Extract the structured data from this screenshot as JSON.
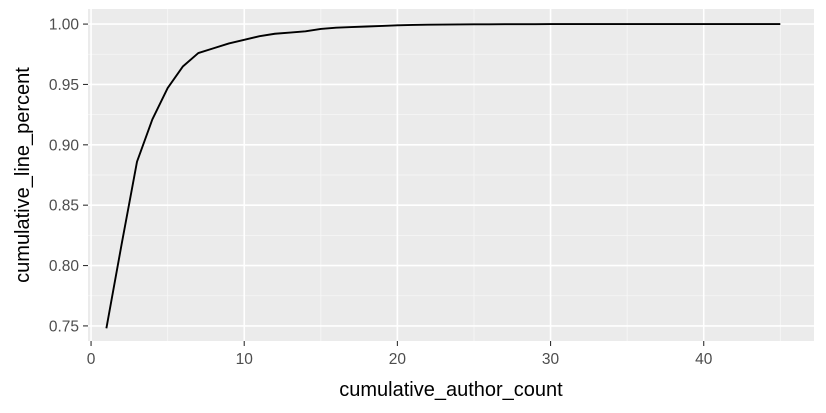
{
  "chart_data": {
    "type": "line",
    "title": "",
    "xlabel": "cumulative_author_count",
    "ylabel": "cumulative_line_percent",
    "xlim": [
      -0.2,
      47.2
    ],
    "ylim": [
      0.7375,
      1.0125
    ],
    "x_ticks": [
      0,
      10,
      20,
      30,
      40
    ],
    "x_tick_labels": [
      "0",
      "10",
      "20",
      "30",
      "40"
    ],
    "x_minor_ticks": [
      5,
      15,
      25,
      35,
      45
    ],
    "y_ticks": [
      0.75,
      0.8,
      0.85,
      0.9,
      0.95,
      1.0
    ],
    "y_tick_labels": [
      "0.75",
      "0.80",
      "0.85",
      "0.90",
      "0.95",
      "1.00"
    ],
    "y_minor_ticks": [
      0.775,
      0.825,
      0.875,
      0.925,
      0.975
    ],
    "grid": true,
    "legend": "none",
    "background": "#ebebeb",
    "line_color": "#000000",
    "x": [
      1,
      2,
      3,
      4,
      5,
      6,
      7,
      8,
      9,
      10,
      11,
      12,
      13,
      14,
      15,
      16,
      17,
      18,
      19,
      20,
      21,
      22,
      23,
      24,
      25,
      26,
      27,
      28,
      29,
      30,
      31,
      32,
      33,
      34,
      35,
      36,
      37,
      38,
      39,
      40,
      41,
      42,
      43,
      44,
      45
    ],
    "values": [
      0.748,
      0.818,
      0.886,
      0.921,
      0.947,
      0.965,
      0.976,
      0.98,
      0.984,
      0.987,
      0.99,
      0.992,
      0.993,
      0.994,
      0.996,
      0.997,
      0.9975,
      0.998,
      0.9985,
      0.999,
      0.9993,
      0.9995,
      0.9996,
      0.9997,
      0.9998,
      0.9998,
      0.9999,
      0.9999,
      0.9999,
      1.0,
      1.0,
      1.0,
      1.0,
      1.0,
      1.0,
      1.0,
      1.0,
      1.0,
      1.0,
      1.0,
      1.0,
      1.0,
      1.0,
      1.0,
      1.0
    ]
  }
}
